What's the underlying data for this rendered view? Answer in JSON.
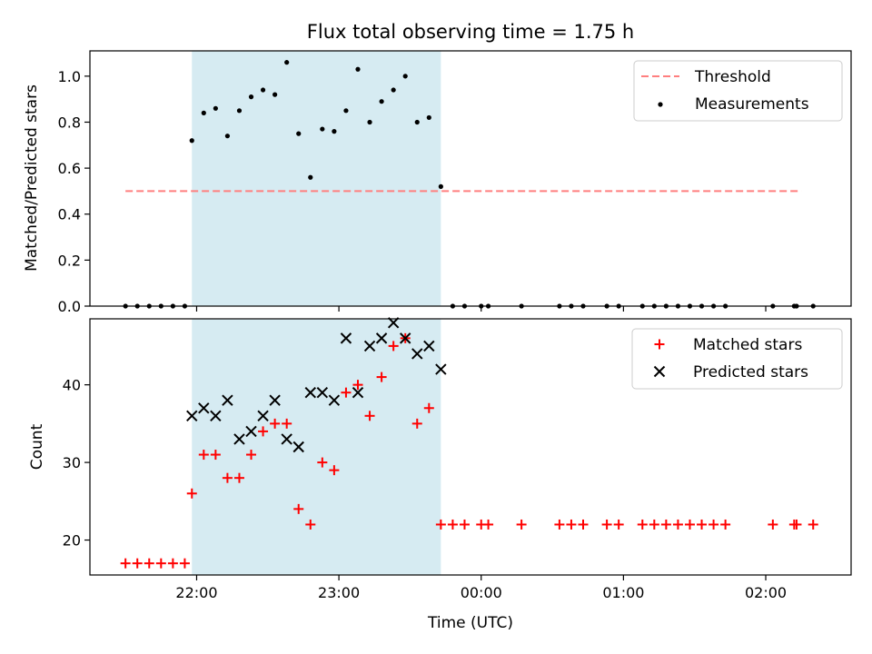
{
  "chart_data": [
    {
      "type": "scatter",
      "title": "Flux total observing time = 1.75 h",
      "xlabel": "",
      "ylabel": "Matched/Predicted stars",
      "ylim": [
        0,
        1.11
      ],
      "yticks": [
        "0.0",
        "0.2",
        "0.4",
        "0.6",
        "0.8",
        "1.0"
      ],
      "grid": false,
      "legend_position": "top-right",
      "shaded_interval": {
        "start": "21:58",
        "end": "23:43",
        "color": "#add8e6"
      },
      "threshold": {
        "name": "Threshold",
        "value": 0.5,
        "x_start": "21:30",
        "x_end": "02:15",
        "color": "#ff7f7f"
      },
      "series": [
        {
          "name": "Measurements",
          "color": "#000000",
          "marker": "dot",
          "points": [
            [
              "21:30",
              0.0
            ],
            [
              "21:35",
              0.0
            ],
            [
              "21:40",
              0.0
            ],
            [
              "21:45",
              0.0
            ],
            [
              "21:50",
              0.0
            ],
            [
              "21:55",
              0.0
            ],
            [
              "21:58",
              0.72
            ],
            [
              "22:03",
              0.84
            ],
            [
              "22:08",
              0.86
            ],
            [
              "22:13",
              0.74
            ],
            [
              "22:18",
              0.85
            ],
            [
              "22:23",
              0.91
            ],
            [
              "22:28",
              0.94
            ],
            [
              "22:33",
              0.92
            ],
            [
              "22:38",
              1.06
            ],
            [
              "22:43",
              0.75
            ],
            [
              "22:48",
              0.56
            ],
            [
              "22:53",
              0.77
            ],
            [
              "22:58",
              0.76
            ],
            [
              "23:03",
              0.85
            ],
            [
              "23:08",
              1.03
            ],
            [
              "23:13",
              0.8
            ],
            [
              "23:18",
              0.89
            ],
            [
              "23:23",
              0.94
            ],
            [
              "23:28",
              1.0
            ],
            [
              "23:33",
              0.8
            ],
            [
              "23:38",
              0.82
            ],
            [
              "23:43",
              0.52
            ],
            [
              "23:48",
              0.0
            ],
            [
              "23:53",
              0.0
            ],
            [
              "00:00",
              0.0
            ],
            [
              "00:03",
              0.0
            ],
            [
              "00:17",
              0.0
            ],
            [
              "00:33",
              0.0
            ],
            [
              "00:38",
              0.0
            ],
            [
              "00:43",
              0.0
            ],
            [
              "00:53",
              0.0
            ],
            [
              "00:58",
              0.0
            ],
            [
              "01:08",
              0.0
            ],
            [
              "01:13",
              0.0
            ],
            [
              "01:18",
              0.0
            ],
            [
              "01:23",
              0.0
            ],
            [
              "01:28",
              0.0
            ],
            [
              "01:33",
              0.0
            ],
            [
              "01:38",
              0.0
            ],
            [
              "01:43",
              0.0
            ],
            [
              "02:03",
              0.0
            ],
            [
              "02:12",
              0.0
            ],
            [
              "02:13",
              0.0
            ],
            [
              "02:20",
              0.0
            ]
          ]
        }
      ]
    },
    {
      "type": "scatter",
      "title": "",
      "xlabel": "Time (UTC)",
      "ylabel": "Count",
      "ylim": [
        15.5,
        48.5
      ],
      "yticks": [
        "20",
        "30",
        "40"
      ],
      "xlim": [
        "21:15",
        "02:36"
      ],
      "xticks": [
        "22:00",
        "23:00",
        "00:00",
        "01:00",
        "02:00"
      ],
      "grid": false,
      "legend_position": "top-right",
      "series": [
        {
          "name": "Matched stars",
          "color": "#ff0000",
          "marker": "plus",
          "points": [
            [
              "21:30",
              17
            ],
            [
              "21:35",
              17
            ],
            [
              "21:40",
              17
            ],
            [
              "21:45",
              17
            ],
            [
              "21:50",
              17
            ],
            [
              "21:55",
              17
            ],
            [
              "21:58",
              26
            ],
            [
              "22:03",
              31
            ],
            [
              "22:08",
              31
            ],
            [
              "22:13",
              28
            ],
            [
              "22:18",
              28
            ],
            [
              "22:23",
              31
            ],
            [
              "22:28",
              34
            ],
            [
              "22:33",
              35
            ],
            [
              "22:38",
              35
            ],
            [
              "22:43",
              24
            ],
            [
              "22:48",
              22
            ],
            [
              "22:53",
              30
            ],
            [
              "22:58",
              29
            ],
            [
              "23:03",
              39
            ],
            [
              "23:08",
              40
            ],
            [
              "23:13",
              36
            ],
            [
              "23:18",
              41
            ],
            [
              "23:23",
              45
            ],
            [
              "23:28",
              46
            ],
            [
              "23:33",
              35
            ],
            [
              "23:38",
              37
            ],
            [
              "23:43",
              22
            ],
            [
              "23:48",
              22
            ],
            [
              "23:53",
              22
            ],
            [
              "00:00",
              22
            ],
            [
              "00:03",
              22
            ],
            [
              "00:17",
              22
            ],
            [
              "00:33",
              22
            ],
            [
              "00:38",
              22
            ],
            [
              "00:43",
              22
            ],
            [
              "00:53",
              22
            ],
            [
              "00:58",
              22
            ],
            [
              "01:08",
              22
            ],
            [
              "01:13",
              22
            ],
            [
              "01:18",
              22
            ],
            [
              "01:23",
              22
            ],
            [
              "01:28",
              22
            ],
            [
              "01:33",
              22
            ],
            [
              "01:38",
              22
            ],
            [
              "01:43",
              22
            ],
            [
              "02:03",
              22
            ],
            [
              "02:12",
              22
            ],
            [
              "02:13",
              22
            ],
            [
              "02:20",
              22
            ]
          ]
        },
        {
          "name": "Predicted stars",
          "color": "#000000",
          "marker": "x",
          "points": [
            [
              "21:58",
              36
            ],
            [
              "22:03",
              37
            ],
            [
              "22:08",
              36
            ],
            [
              "22:13",
              38
            ],
            [
              "22:18",
              33
            ],
            [
              "22:23",
              34
            ],
            [
              "22:28",
              36
            ],
            [
              "22:33",
              38
            ],
            [
              "22:38",
              33
            ],
            [
              "22:43",
              32
            ],
            [
              "22:48",
              39
            ],
            [
              "22:53",
              39
            ],
            [
              "22:58",
              38
            ],
            [
              "23:03",
              46
            ],
            [
              "23:08",
              39
            ],
            [
              "23:13",
              45
            ],
            [
              "23:18",
              46
            ],
            [
              "23:23",
              48
            ],
            [
              "23:28",
              46
            ],
            [
              "23:33",
              44
            ],
            [
              "23:38",
              45
            ],
            [
              "23:43",
              42
            ]
          ]
        }
      ]
    }
  ]
}
